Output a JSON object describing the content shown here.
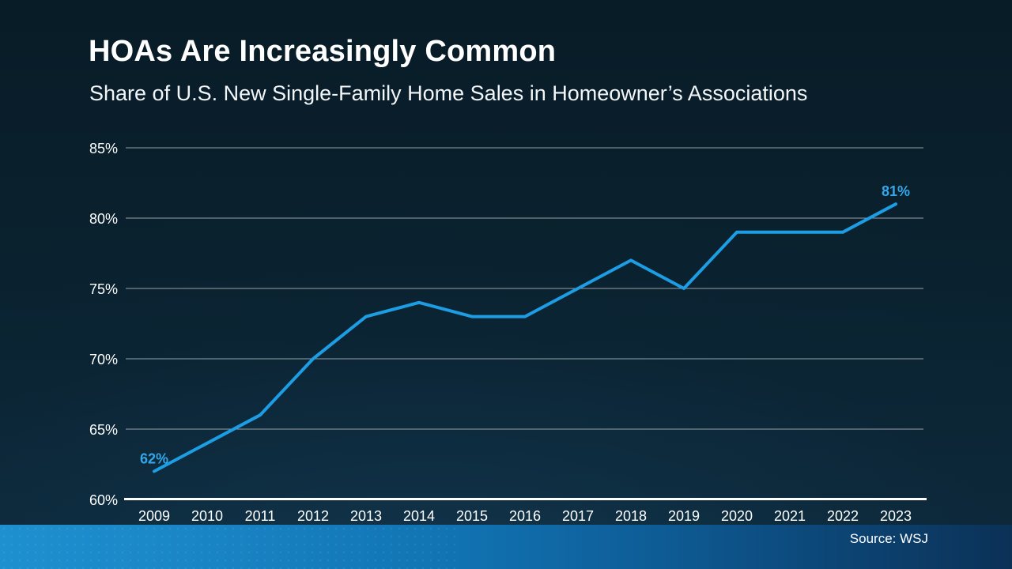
{
  "chart_data": {
    "type": "line",
    "title": "HOAs Are Increasingly Common",
    "subtitle": "Share of U.S. New Single-Family Home Sales in Homeowner’s Associations",
    "x": [
      2009,
      2010,
      2011,
      2012,
      2013,
      2014,
      2015,
      2016,
      2017,
      2018,
      2019,
      2020,
      2021,
      2022,
      2023
    ],
    "series": [
      {
        "name": "Share of new single-family home sales in HOAs",
        "values": [
          62,
          64,
          66,
          70,
          73,
          74,
          73,
          73,
          75,
          77,
          75,
          79,
          79,
          79,
          81
        ]
      }
    ],
    "xlabel": "",
    "ylabel": "",
    "ylim": [
      60,
      85
    ],
    "yticks": [
      60,
      65,
      70,
      75,
      80,
      85
    ],
    "ytick_suffix": "%",
    "grid": true,
    "legend": false,
    "point_labels": [
      {
        "x": 2009,
        "text": "62%"
      },
      {
        "x": 2023,
        "text": "81%"
      }
    ]
  },
  "footer": {
    "source": "Source: WSJ"
  },
  "colors": {
    "line": "#1c9de4",
    "data_label": "#35a7e9",
    "grid": "#97a1a7",
    "axis": "#ffffff",
    "tick_label": "#ffffff",
    "title": "#ffffff",
    "band_left": "#1f90cf",
    "band_right": "#0b3156",
    "background_top": "#081c27",
    "background_bottom": "#0d2a3c"
  }
}
